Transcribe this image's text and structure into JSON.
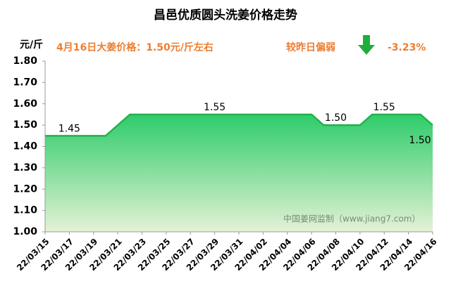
{
  "chart_data": {
    "type": "area",
    "title": "昌邑优质圆头洗姜价格走势",
    "y_unit": "元/斤",
    "annotation": "4月16日大姜价格：1.50元/斤左右",
    "change_text": "较昨日偏弱",
    "change_value": "-3.23%",
    "watermark": "中国姜网监制（www.jiang7.com）",
    "categories": [
      "22/03/15",
      null,
      "22/03/17",
      null,
      "22/03/19",
      null,
      "22/03/21",
      null,
      "22/03/23",
      null,
      "22/03/25",
      null,
      "22/03/27",
      null,
      "22/03/29",
      null,
      "22/03/31",
      null,
      "22/04/02",
      null,
      "22/04/04",
      null,
      "22/04/06",
      null,
      "22/04/08",
      null,
      "22/04/10",
      null,
      "22/04/12",
      null,
      "22/04/14",
      null,
      "22/04/16"
    ],
    "values": [
      1.45,
      1.45,
      1.45,
      1.45,
      1.45,
      1.45,
      1.5,
      1.55,
      1.55,
      1.55,
      1.55,
      1.55,
      1.55,
      1.55,
      1.55,
      1.55,
      1.55,
      1.55,
      1.55,
      1.55,
      1.55,
      1.55,
      1.55,
      1.5,
      1.5,
      1.5,
      1.5,
      1.55,
      1.55,
      1.55,
      1.55,
      1.55,
      1.5
    ],
    "value_labels": [
      null,
      null,
      "1.45",
      null,
      null,
      null,
      null,
      null,
      null,
      null,
      null,
      null,
      null,
      null,
      "1.55",
      null,
      null,
      null,
      null,
      null,
      null,
      null,
      null,
      null,
      "1.50",
      null,
      null,
      null,
      "1.55",
      null,
      null,
      null,
      "1.50"
    ],
    "color": "#22b14c",
    "ylim": [
      1.0,
      1.8
    ],
    "yticks": [
      {
        "value": 1.0,
        "label": "1.00"
      },
      {
        "value": 1.1,
        "label": "1.10"
      },
      {
        "value": 1.2,
        "label": "1.20"
      },
      {
        "value": 1.3,
        "label": "1.30"
      },
      {
        "value": 1.4,
        "label": "1.40"
      },
      {
        "value": 1.5,
        "label": "1.50"
      },
      {
        "value": 1.6,
        "label": "1.60"
      },
      {
        "value": 1.7,
        "label": "1.70"
      },
      {
        "value": 1.8,
        "label": "1.80"
      }
    ]
  }
}
